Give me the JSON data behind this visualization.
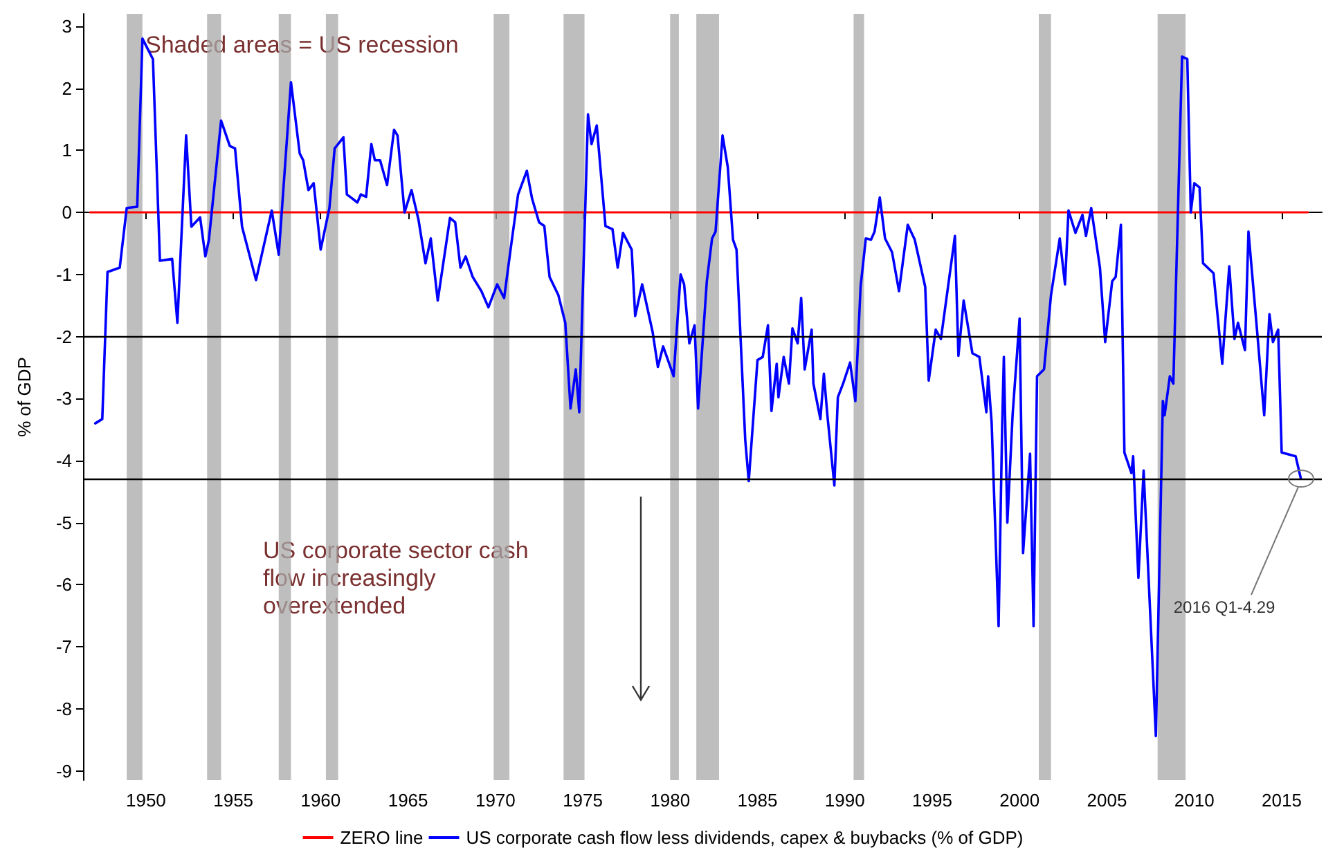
{
  "chart_data": {
    "type": "line",
    "ylabel": "% of GDP",
    "xlim": [
      1946.4,
      2017.3
    ],
    "ylim": [
      -9.15,
      3.2
    ],
    "xticks": [
      1950,
      1955,
      1960,
      1965,
      1970,
      1975,
      1980,
      1985,
      1990,
      1995,
      2000,
      2005,
      2010,
      2015
    ],
    "yticks": [
      -9,
      -8,
      -7,
      -6,
      -5,
      -4,
      -3,
      -2,
      -1,
      0,
      1,
      2,
      3
    ],
    "grid": false,
    "legend": "bottom",
    "marker": "none",
    "line_style": "solid",
    "series": [
      {
        "name": "ZERO line",
        "color": "#ff0000",
        "x": [
          1946.8,
          2016.5
        ],
        "values": [
          0,
          0
        ]
      },
      {
        "name": "US corporate cash flow less dividends, capex & buybacks (% of GDP)",
        "color": "#0000ff",
        "x": [
          1947.1,
          1947.5,
          1947.8,
          1948.5,
          1948.9,
          1949.5,
          1949.8,
          1950.4,
          1950.8,
          1951.5,
          1951.8,
          1952.3,
          1952.6,
          1953.1,
          1953.4,
          1953.6,
          1954.3,
          1954.8,
          1955.1,
          1955.5,
          1956.3,
          1957.2,
          1957.6,
          1958.3,
          1958.8,
          1959.0,
          1959.3,
          1959.6,
          1960.0,
          1960.5,
          1960.8,
          1961.3,
          1961.5,
          1962.1,
          1962.3,
          1962.6,
          1962.9,
          1963.1,
          1963.4,
          1963.8,
          1964.2,
          1964.4,
          1964.8,
          1965.2,
          1965.6,
          1966.0,
          1966.3,
          1966.7,
          1967.4,
          1967.7,
          1968.0,
          1968.3,
          1968.7,
          1969.2,
          1969.6,
          1970.1,
          1970.5,
          1970.9,
          1971.3,
          1971.8,
          1972.1,
          1972.5,
          1972.8,
          1973.1,
          1973.6,
          1974.0,
          1974.3,
          1974.6,
          1974.8,
          1975.3,
          1975.5,
          1975.8,
          1976.3,
          1976.7,
          1977.0,
          1977.3,
          1977.8,
          1978.0,
          1978.4,
          1979.0,
          1979.3,
          1979.6,
          1980.2,
          1980.6,
          1980.8,
          1981.1,
          1981.4,
          1981.6,
          1982.1,
          1982.4,
          1982.6,
          1983.0,
          1983.3,
          1983.6,
          1983.8,
          1984.3,
          1984.5,
          1985.0,
          1985.3,
          1985.6,
          1985.8,
          1986.1,
          1986.2,
          1986.5,
          1986.8,
          1987.0,
          1987.3,
          1987.5,
          1987.7,
          1988.1,
          1988.2,
          1988.6,
          1988.8,
          1989.0,
          1989.4,
          1989.6,
          1989.9,
          1990.3,
          1990.6,
          1990.9,
          1991.2,
          1991.5,
          1991.7,
          1992.0,
          1992.3,
          1992.7,
          1993.1,
          1993.6,
          1994.0,
          1994.6,
          1994.8,
          1995.2,
          1995.5,
          1996.3,
          1996.5,
          1996.8,
          1997.3,
          1997.7,
          1998.1,
          1998.2,
          1998.4,
          1998.8,
          1999.0,
          1999.1,
          1999.3,
          1999.6,
          2000.0,
          2000.2,
          2000.6,
          2000.8,
          2001.0,
          2001.4,
          2001.8,
          2002.3,
          2002.6,
          2002.8,
          2003.2,
          2003.6,
          2003.8,
          2004.1,
          2004.6,
          2004.9,
          2005.3,
          2005.5,
          2005.8,
          2006.0,
          2006.4,
          2006.5,
          2006.8,
          2007.1,
          2007.8,
          2008.2,
          2008.3,
          2008.6,
          2008.8,
          2009.3,
          2009.6,
          2009.8,
          2010.0,
          2010.3,
          2010.5,
          2011.1,
          2011.6,
          2012.0,
          2012.3,
          2012.5,
          2012.9,
          2013.1,
          2013.6,
          2014.0,
          2014.3,
          2014.5,
          2014.8,
          2015.0,
          2015.8,
          2016.1
        ],
        "values": [
          -3.4,
          -3.33,
          -0.96,
          -0.89,
          0.07,
          0.09,
          2.8,
          2.47,
          -0.78,
          -0.75,
          -1.78,
          1.24,
          -0.23,
          -0.08,
          -0.71,
          -0.45,
          1.48,
          1.07,
          1.03,
          -0.23,
          -1.09,
          0.03,
          -0.68,
          2.1,
          0.95,
          0.84,
          0.36,
          0.47,
          -0.6,
          0.07,
          1.03,
          1.21,
          0.29,
          0.16,
          0.29,
          0.25,
          1.1,
          0.84,
          0.84,
          0.44,
          1.33,
          1.24,
          0,
          0.36,
          -0.12,
          -0.82,
          -0.42,
          -1.42,
          -0.09,
          -0.16,
          -0.89,
          -0.71,
          -1.04,
          -1.27,
          -1.53,
          -1.16,
          -1.38,
          -0.53,
          0.29,
          0.67,
          0.22,
          -0.16,
          -0.22,
          -1.04,
          -1.33,
          -1.78,
          -3.16,
          -2.53,
          -3.22,
          1.58,
          1.1,
          1.4,
          -0.22,
          -0.27,
          -0.89,
          -0.33,
          -0.6,
          -1.67,
          -1.16,
          -1.93,
          -2.49,
          -2.16,
          -2.64,
          -1.0,
          -1.16,
          -2.11,
          -1.82,
          -3.16,
          -1.11,
          -0.42,
          -0.31,
          1.24,
          0.73,
          -0.44,
          -0.6,
          -3.67,
          -4.33,
          -2.38,
          -2.33,
          -1.82,
          -3.2,
          -2.44,
          -2.98,
          -2.33,
          -2.76,
          -1.87,
          -2.11,
          -1.38,
          -2.53,
          -1.89,
          -2.76,
          -3.33,
          -2.6,
          -3.27,
          -4.4,
          -2.98,
          -2.76,
          -2.42,
          -3.04,
          -1.2,
          -0.42,
          -0.44,
          -0.31,
          0.24,
          -0.42,
          -0.64,
          -1.27,
          -0.2,
          -0.44,
          -1.2,
          -2.71,
          -1.89,
          -2.04,
          -0.38,
          -2.31,
          -1.42,
          -2.27,
          -2.33,
          -3.22,
          -2.64,
          -3.38,
          -6.67,
          -3.49,
          -2.33,
          -5.0,
          -3.27,
          -1.71,
          -5.49,
          -3.89,
          -6.67,
          -2.64,
          -2.53,
          -1.33,
          -0.42,
          -1.16,
          0.03,
          -0.33,
          -0.04,
          -0.38,
          0.07,
          -0.89,
          -2.09,
          -1.11,
          -1.04,
          -0.2,
          -3.87,
          -4.2,
          -3.93,
          -5.89,
          -4.16,
          -8.44,
          -3.04,
          -3.27,
          -2.64,
          -2.76,
          2.51,
          2.47,
          0,
          0.47,
          0.4,
          -0.82,
          -0.98,
          -2.44,
          -0.87,
          -2.04,
          -1.78,
          -2.22,
          -0.31,
          -1.93,
          -3.27,
          -1.64,
          -2.09,
          -1.89,
          -3.87,
          -3.93,
          -4.29
        ]
      }
    ],
    "ref_lines": [
      {
        "axis": "y",
        "value": -2,
        "color": "#000000"
      },
      {
        "axis": "y",
        "value": -4.29,
        "color": "#000000"
      }
    ],
    "bands": [
      {
        "axis": "x",
        "from": 1948.9,
        "to": 1949.8,
        "color": "#a8a8a8"
      },
      {
        "axis": "x",
        "from": 1953.5,
        "to": 1954.3,
        "color": "#a8a8a8"
      },
      {
        "axis": "x",
        "from": 1957.6,
        "to": 1958.3,
        "color": "#a8a8a8"
      },
      {
        "axis": "x",
        "from": 1960.3,
        "to": 1961.0,
        "color": "#a8a8a8"
      },
      {
        "axis": "x",
        "from": 1969.9,
        "to": 1970.8,
        "color": "#a8a8a8"
      },
      {
        "axis": "x",
        "from": 1973.9,
        "to": 1975.1,
        "color": "#a8a8a8"
      },
      {
        "axis": "x",
        "from": 1980.0,
        "to": 1980.5,
        "color": "#a8a8a8"
      },
      {
        "axis": "x",
        "from": 1981.5,
        "to": 1982.8,
        "color": "#a8a8a8"
      },
      {
        "axis": "x",
        "from": 1990.5,
        "to": 1991.1,
        "color": "#a8a8a8"
      },
      {
        "axis": "x",
        "from": 2001.1,
        "to": 2001.8,
        "color": "#a8a8a8"
      },
      {
        "axis": "x",
        "from": 2007.9,
        "to": 2009.5,
        "color": "#a8a8a8"
      }
    ],
    "annotations": [
      "Shaded areas = US recession",
      "US corporate sector cash\nflow increasingly\noverextended",
      {
        "text": "2016 Q1-4.29",
        "x": 2016.1,
        "y": -4.29
      }
    ]
  }
}
